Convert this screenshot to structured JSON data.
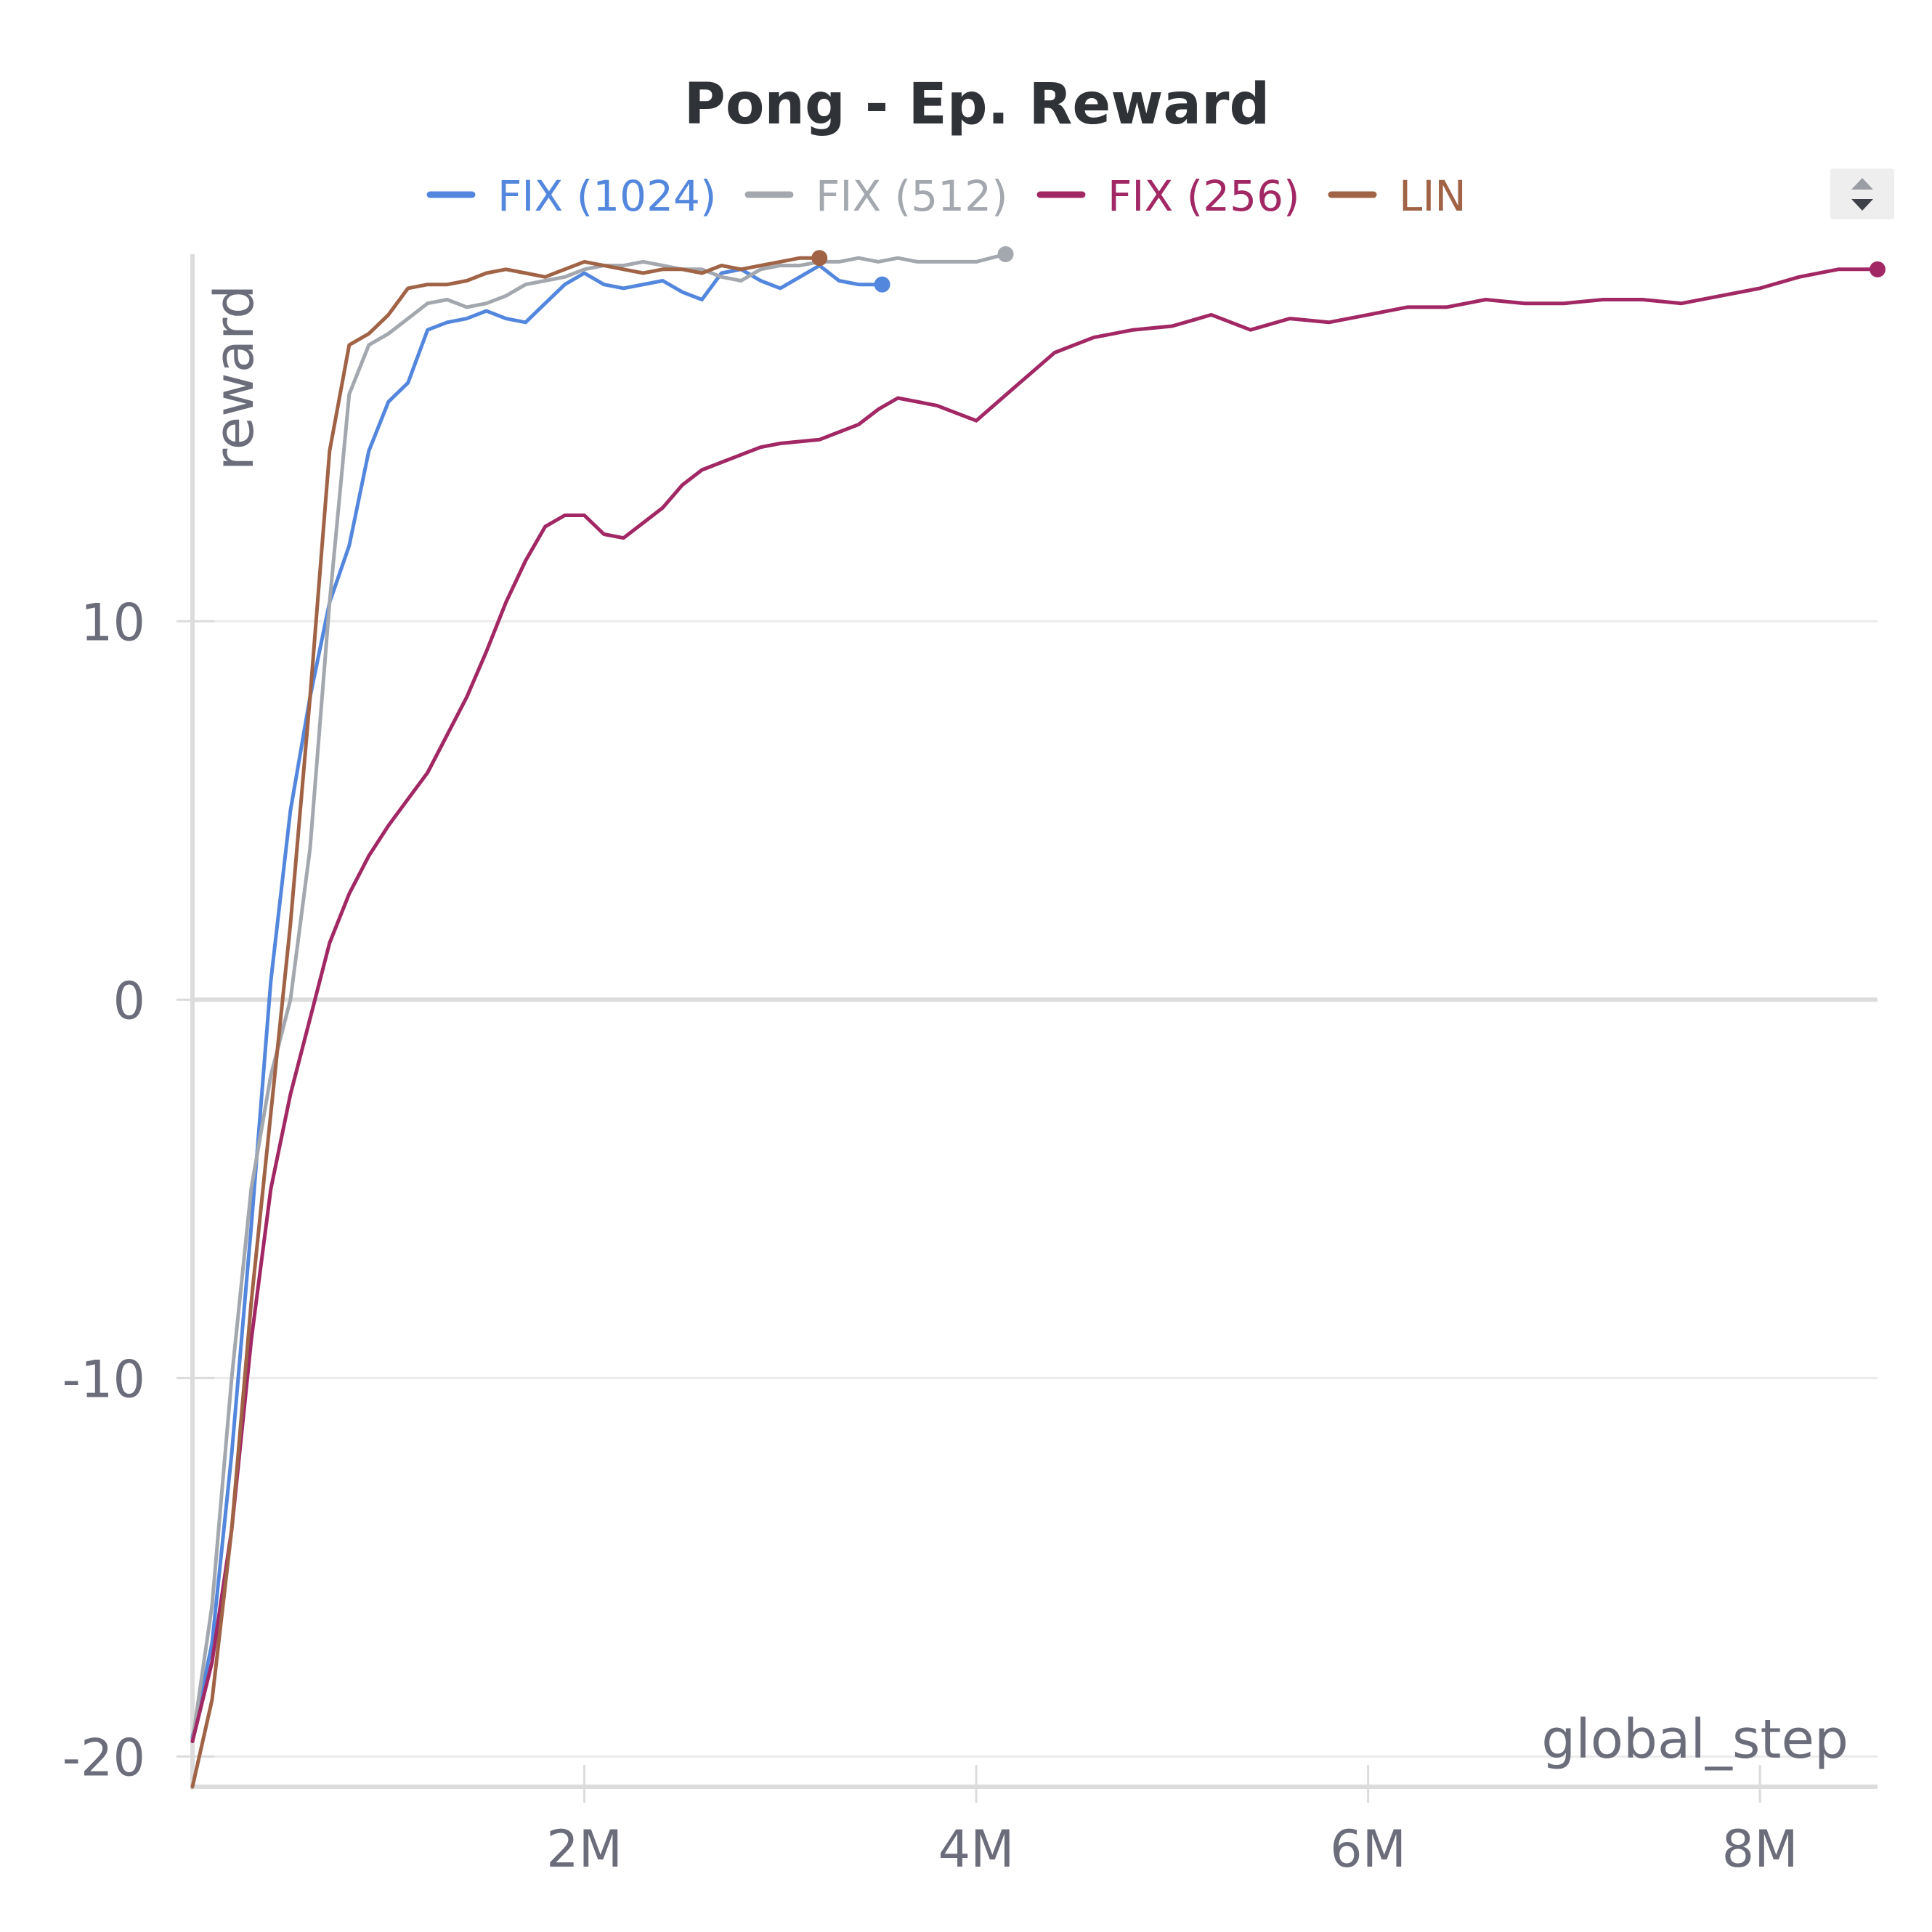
{
  "chart_data": {
    "type": "line",
    "title": "Pong - Ep. Reward",
    "xlabel": "global_step",
    "ylabel": "reward",
    "xlim": [
      0,
      8600000
    ],
    "ylim": [
      -20.8,
      19.7
    ],
    "x_ticks": [
      {
        "value": 2000000,
        "label": "2M"
      },
      {
        "value": 4000000,
        "label": "4M"
      },
      {
        "value": 6000000,
        "label": "6M"
      },
      {
        "value": 8000000,
        "label": "8M"
      }
    ],
    "y_ticks": [
      {
        "value": -20,
        "label": "-20"
      },
      {
        "value": -10,
        "label": "-10"
      },
      {
        "value": 0,
        "label": "0"
      },
      {
        "value": 10,
        "label": "10"
      }
    ],
    "grid": true,
    "legend_position": "top",
    "series": [
      {
        "name": "FIX (1024)",
        "color": "#5387dd",
        "x": [
          0,
          100000,
          200000,
          300000,
          400000,
          500000,
          600000,
          700000,
          800000,
          900000,
          1000000,
          1100000,
          1200000,
          1300000,
          1400000,
          1500000,
          1600000,
          1700000,
          1800000,
          1900000,
          2000000,
          2100000,
          2200000,
          2300000,
          2400000,
          2500000,
          2600000,
          2700000,
          2800000,
          2900000,
          3000000,
          3100000,
          3200000,
          3300000,
          3400000,
          3520000
        ],
        "y": [
          -19.5,
          -17.0,
          -12.0,
          -6.0,
          0.5,
          5.0,
          8.0,
          10.5,
          12.0,
          14.5,
          15.8,
          16.3,
          17.7,
          17.9,
          18.0,
          18.2,
          18.0,
          17.9,
          18.4,
          18.9,
          19.2,
          18.9,
          18.8,
          18.9,
          19.0,
          18.7,
          18.5,
          19.2,
          19.3,
          19.0,
          18.8,
          19.1,
          19.4,
          19.0,
          18.9,
          18.9
        ]
      },
      {
        "name": "FIX (512)",
        "color": "#a3a8ae",
        "x": [
          0,
          100000,
          200000,
          300000,
          400000,
          500000,
          600000,
          700000,
          800000,
          900000,
          1000000,
          1100000,
          1200000,
          1300000,
          1400000,
          1500000,
          1600000,
          1700000,
          1800000,
          1900000,
          2000000,
          2100000,
          2200000,
          2300000,
          2400000,
          2500000,
          2600000,
          2700000,
          2800000,
          2900000,
          3000000,
          3100000,
          3200000,
          3300000,
          3400000,
          3500000,
          3600000,
          3700000,
          3800000,
          3900000,
          4000000,
          4150000
        ],
        "y": [
          -19.6,
          -16.0,
          -10.0,
          -5.0,
          -2.0,
          0.0,
          4.0,
          10.5,
          16.0,
          17.3,
          17.6,
          18.0,
          18.4,
          18.5,
          18.3,
          18.4,
          18.6,
          18.9,
          19.0,
          19.1,
          19.3,
          19.4,
          19.4,
          19.5,
          19.4,
          19.3,
          19.3,
          19.1,
          19.0,
          19.3,
          19.4,
          19.4,
          19.5,
          19.5,
          19.6,
          19.5,
          19.6,
          19.5,
          19.5,
          19.5,
          19.5,
          19.7
        ]
      },
      {
        "name": "FIX (256)",
        "color": "#a12864",
        "x": [
          0,
          100000,
          200000,
          300000,
          400000,
          500000,
          600000,
          700000,
          800000,
          900000,
          1000000,
          1100000,
          1200000,
          1300000,
          1400000,
          1500000,
          1600000,
          1700000,
          1800000,
          1900000,
          2000000,
          2100000,
          2200000,
          2300000,
          2400000,
          2500000,
          2600000,
          2700000,
          2800000,
          2900000,
          3000000,
          3200000,
          3400000,
          3500000,
          3600000,
          3800000,
          4000000,
          4200000,
          4400000,
          4600000,
          4800000,
          5000000,
          5200000,
          5400000,
          5600000,
          5800000,
          6000000,
          6200000,
          6400000,
          6600000,
          6800000,
          7000000,
          7200000,
          7400000,
          7600000,
          7800000,
          8000000,
          8200000,
          8400000,
          8600000
        ],
        "y": [
          -19.6,
          -17.5,
          -14.0,
          -9.0,
          -5.0,
          -2.5,
          -0.5,
          1.5,
          2.8,
          3.8,
          4.6,
          5.3,
          6.0,
          7.0,
          8.0,
          9.2,
          10.5,
          11.6,
          12.5,
          12.8,
          12.8,
          12.3,
          12.2,
          12.6,
          13.0,
          13.6,
          14.0,
          14.2,
          14.4,
          14.6,
          14.7,
          14.8,
          15.2,
          15.6,
          15.9,
          15.7,
          15.3,
          16.2,
          17.1,
          17.5,
          17.7,
          17.8,
          18.1,
          17.7,
          18.0,
          17.9,
          18.1,
          18.3,
          18.3,
          18.5,
          18.4,
          18.4,
          18.5,
          18.5,
          18.4,
          18.6,
          18.8,
          19.1,
          19.3,
          19.3
        ]
      },
      {
        "name": "LIN",
        "color": "#a06345",
        "x": [
          0,
          100000,
          200000,
          300000,
          400000,
          500000,
          600000,
          700000,
          800000,
          900000,
          1000000,
          1100000,
          1200000,
          1300000,
          1400000,
          1500000,
          1600000,
          1700000,
          1800000,
          1900000,
          2000000,
          2100000,
          2200000,
          2300000,
          2400000,
          2500000,
          2600000,
          2700000,
          2800000,
          2900000,
          3000000,
          3100000,
          3200000
        ],
        "y": [
          -20.8,
          -18.5,
          -14.0,
          -8.0,
          -3.0,
          2.0,
          8.0,
          14.5,
          17.3,
          17.6,
          18.1,
          18.8,
          18.9,
          18.9,
          19.0,
          19.2,
          19.3,
          19.2,
          19.1,
          19.3,
          19.5,
          19.4,
          19.3,
          19.2,
          19.3,
          19.3,
          19.2,
          19.4,
          19.3,
          19.4,
          19.5,
          19.6,
          19.6
        ]
      }
    ]
  }
}
